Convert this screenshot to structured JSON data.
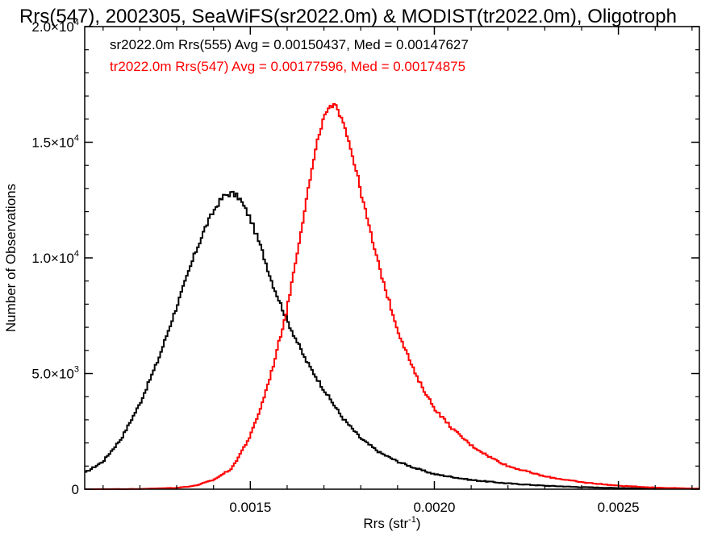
{
  "chart_data": {
    "type": "line",
    "step": true,
    "title": "Rrs(547), 2002305, SeaWiFS(sr2022.0m) & MODIST(tr2022.0m), Oligotroph",
    "xlabel": "Rrs (str",
    "xlabel_sup": "-1",
    "xlabel_tail": ")",
    "ylabel": "Number of Observations",
    "xlim": [
      0.00105,
      0.00272
    ],
    "ylim": [
      0,
      20000
    ],
    "x_ticks": [
      {
        "value": 0.0015,
        "label": "0.0015"
      },
      {
        "value": 0.002,
        "label": "0.0020"
      },
      {
        "value": 0.0025,
        "label": "0.0025"
      }
    ],
    "y_ticks": [
      {
        "value": 0,
        "mant": "0",
        "exp": ""
      },
      {
        "value": 5000,
        "mant": "5.0×10",
        "exp": "3"
      },
      {
        "value": 10000,
        "mant": "1.0×10",
        "exp": "4"
      },
      {
        "value": 15000,
        "mant": "1.5×10",
        "exp": "4"
      },
      {
        "value": 20000,
        "mant": "2.0×10",
        "exp": "4"
      }
    ],
    "grid": false,
    "legend_position": "top-left",
    "series": [
      {
        "name": "sr2022.0m Rrs(555) Avg = 0.00150437, Med = 0.00147627",
        "color": "#000000",
        "x": [
          0.00105,
          0.0011,
          0.00115,
          0.0012,
          0.00125,
          0.0013,
          0.00135,
          0.00138,
          0.00141,
          0.00143,
          0.00145,
          0.00147,
          0.0015,
          0.00153,
          0.00156,
          0.0016,
          0.00165,
          0.0017,
          0.00175,
          0.0018,
          0.00185,
          0.0019,
          0.00195,
          0.002,
          0.0021,
          0.0022,
          0.0023,
          0.0024,
          0.0025,
          0.0026,
          0.00272
        ],
        "y": [
          700,
          1200,
          2200,
          3700,
          5600,
          7900,
          10200,
          11400,
          12300,
          12700,
          12800,
          12600,
          11700,
          10400,
          8900,
          7300,
          5600,
          4300,
          3100,
          2200,
          1600,
          1200,
          900,
          650,
          400,
          250,
          150,
          90,
          50,
          30,
          20
        ]
      },
      {
        "name": "tr2022.0m Rrs(547) Avg = 0.00177596, Med = 0.00174875",
        "color": "#ff0000",
        "x": [
          0.00105,
          0.0012,
          0.0013,
          0.00135,
          0.0014,
          0.00145,
          0.0015,
          0.00153,
          0.00156,
          0.0016,
          0.00163,
          0.00166,
          0.00169,
          0.00171,
          0.00173,
          0.00175,
          0.00178,
          0.00181,
          0.00184,
          0.00187,
          0.0019,
          0.00195,
          0.002,
          0.00205,
          0.0021,
          0.00215,
          0.0022,
          0.0023,
          0.0024,
          0.0025,
          0.0026,
          0.00272
        ],
        "y": [
          0,
          10,
          60,
          150,
          400,
          900,
          2300,
          3600,
          5200,
          7800,
          10500,
          13200,
          15600,
          16400,
          16550,
          16100,
          14300,
          12200,
          10200,
          8500,
          6900,
          4900,
          3500,
          2600,
          1900,
          1400,
          1000,
          550,
          300,
          150,
          70,
          20
        ]
      }
    ]
  }
}
